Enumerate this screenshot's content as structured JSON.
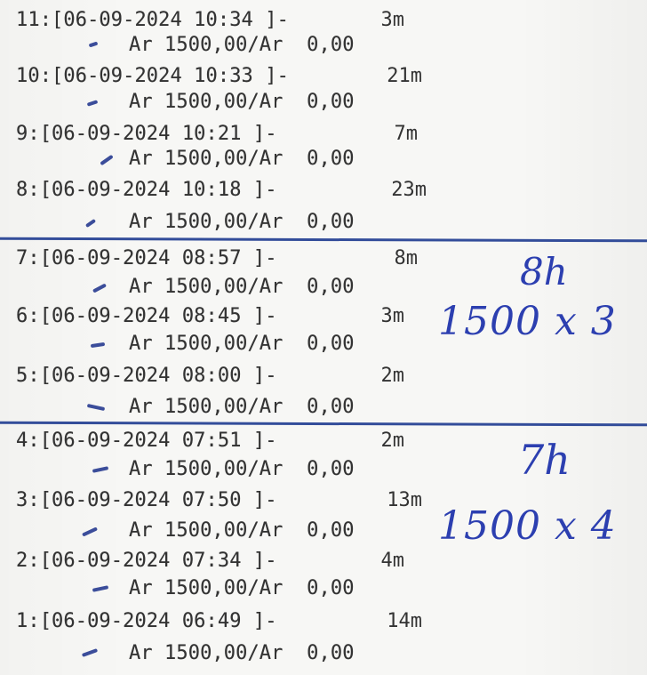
{
  "entries": [
    {
      "id": "11",
      "head": "11:[06-09-2024 10:34 ]-",
      "dur": "3m",
      "sub": "Ar 1500,00/Ar  0,00"
    },
    {
      "id": "10",
      "head": "10:[06-09-2024 10:33 ]-",
      "dur": "21m",
      "sub": "Ar 1500,00/Ar  0,00"
    },
    {
      "id": "9",
      "head": "9:[06-09-2024 10:21 ]-",
      "dur": "7m",
      "sub": "Ar 1500,00/Ar  0,00"
    },
    {
      "id": "8",
      "head": "8:[06-09-2024 10:18 ]-",
      "dur": "23m",
      "sub": "Ar 1500,00/Ar  0,00"
    },
    {
      "id": "7",
      "head": "7:[06-09-2024 08:57 ]-",
      "dur": "8m",
      "sub": "Ar 1500,00/Ar  0,00"
    },
    {
      "id": "6",
      "head": "6:[06-09-2024 08:45 ]-",
      "dur": "3m",
      "sub": "Ar 1500,00/Ar  0,00"
    },
    {
      "id": "5",
      "head": "5:[06-09-2024 08:00 ]-",
      "dur": "2m",
      "sub": "Ar 1500,00/Ar  0,00"
    },
    {
      "id": "4",
      "head": "4:[06-09-2024 07:51 ]-",
      "dur": "2m",
      "sub": "Ar 1500,00/Ar  0,00"
    },
    {
      "id": "3",
      "head": "3:[06-09-2024 07:50 ]-",
      "dur": "13m",
      "sub": "Ar 1500,00/Ar  0,00"
    },
    {
      "id": "2",
      "head": "2:[06-09-2024 07:34 ]-",
      "dur": "4m",
      "sub": "Ar 1500,00/Ar  0,00"
    },
    {
      "id": "1",
      "head": "1:[06-09-2024 06:49 ]-",
      "dur": "14m",
      "sub": "Ar 1500,00/Ar  0,00"
    }
  ],
  "annotations": {
    "top_time": "8h",
    "top_calc": "1500 x 3",
    "bottom_time": "7h",
    "bottom_calc": "1500 x 4"
  },
  "colors": {
    "ink": "#2c3fb0",
    "print": "#333333"
  }
}
